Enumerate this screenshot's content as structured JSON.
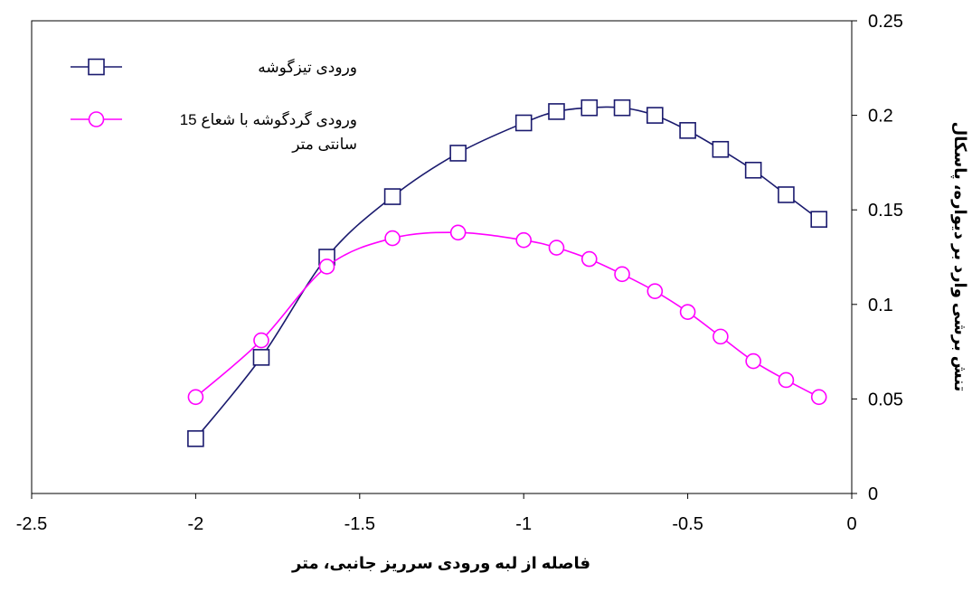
{
  "chart_data": {
    "type": "line",
    "xlabel": "فاصله از لبه ورودی سرریز جانبی، متر",
    "ylabel": "تنش برشی وارد بر دیواره، پاسکال",
    "xlim": [
      -2.5,
      0
    ],
    "ylim": [
      0,
      0.25
    ],
    "x_ticks": [
      "-2.5",
      "-2",
      "-1.5",
      "-1",
      "-0.5",
      "0"
    ],
    "y_ticks": [
      "0",
      "0.05",
      "0.1",
      "0.15",
      "0.2",
      "0.25"
    ],
    "y_axis_side": "right",
    "grid": false,
    "legend_position": "top-left",
    "series": [
      {
        "name": "ورودی تیزگوشه",
        "name_lines": [
          "ورودی تیزگوشه"
        ],
        "color": "#1a1a6e",
        "marker": "square",
        "x": [
          -2.0,
          -1.8,
          -1.6,
          -1.4,
          -1.2,
          -1.0,
          -0.9,
          -0.8,
          -0.7,
          -0.6,
          -0.5,
          -0.4,
          -0.3,
          -0.2,
          -0.1
        ],
        "values": [
          0.029,
          0.072,
          0.125,
          0.157,
          0.18,
          0.196,
          0.202,
          0.204,
          0.204,
          0.2,
          0.192,
          0.182,
          0.171,
          0.158,
          0.145
        ]
      },
      {
        "name": "ورودی گردگوشه با شعاع 15 سانتی متر",
        "name_lines": [
          "ورودی گردگوشه با شعاع 15",
          "سانتی متر"
        ],
        "color": "#ff00ff",
        "marker": "circle",
        "x": [
          -2.0,
          -1.8,
          -1.6,
          -1.4,
          -1.2,
          -1.0,
          -0.9,
          -0.8,
          -0.7,
          -0.6,
          -0.5,
          -0.4,
          -0.3,
          -0.2,
          -0.1
        ],
        "values": [
          0.051,
          0.081,
          0.12,
          0.135,
          0.138,
          0.134,
          0.13,
          0.124,
          0.116,
          0.107,
          0.096,
          0.083,
          0.07,
          0.06,
          0.051
        ]
      }
    ]
  }
}
